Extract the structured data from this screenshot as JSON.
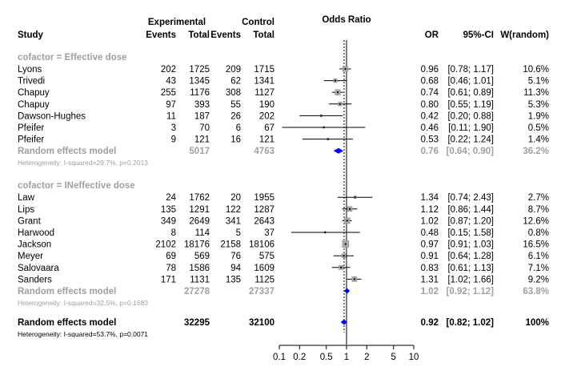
{
  "chart_data": {
    "type": "forest",
    "title": "Odds Ratio",
    "x_scale": "log",
    "x_range": [
      0.1,
      10
    ],
    "x_ticks": [
      "0.1",
      "0.2",
      "0.5",
      "1",
      "2",
      "5",
      "10"
    ],
    "reference_line": 1,
    "overall_line": 0.92,
    "headers": {
      "experimental": "Experimental",
      "control": "Control",
      "study": "Study",
      "events": "Events",
      "total": "Total",
      "or": "OR",
      "ci": "95%-CI",
      "weight": "W(random)"
    },
    "groups": [
      {
        "label": "cofactor = Effective dose",
        "studies": [
          {
            "name": "Lyons",
            "e_events": "202",
            "e_total": "1725",
            "c_events": "209",
            "c_total": "1715",
            "or": 0.96,
            "lo": 0.78,
            "hi": 1.17,
            "or_text": "0.96",
            "ci_text": "[0.78; 1.17]",
            "weight": "10.6%"
          },
          {
            "name": "Trivedi",
            "e_events": "43",
            "e_total": "1345",
            "c_events": "62",
            "c_total": "1341",
            "or": 0.68,
            "lo": 0.46,
            "hi": 1.01,
            "or_text": "0.68",
            "ci_text": "[0.46; 1.01]",
            "weight": "5.1%"
          },
          {
            "name": "Chapuy",
            "e_events": "255",
            "e_total": "1176",
            "c_events": "308",
            "c_total": "1127",
            "or": 0.74,
            "lo": 0.61,
            "hi": 0.89,
            "or_text": "0.74",
            "ci_text": "[0.61; 0.89]",
            "weight": "11.3%"
          },
          {
            "name": "Chapuy",
            "e_events": "97",
            "e_total": "393",
            "c_events": "55",
            "c_total": "190",
            "or": 0.8,
            "lo": 0.55,
            "hi": 1.19,
            "or_text": "0.80",
            "ci_text": "[0.55; 1.19]",
            "weight": "5.3%"
          },
          {
            "name": "Dawson-Hughes",
            "e_events": "11",
            "e_total": "187",
            "c_events": "26",
            "c_total": "202",
            "or": 0.42,
            "lo": 0.2,
            "hi": 0.88,
            "or_text": "0.42",
            "ci_text": "[0.20; 0.88]",
            "weight": "1.9%"
          },
          {
            "name": "Pfeifer",
            "e_events": "3",
            "e_total": "70",
            "c_events": "6",
            "c_total": "67",
            "or": 0.46,
            "lo": 0.11,
            "hi": 1.9,
            "or_text": "0.46",
            "ci_text": "[0.11; 1.90]",
            "weight": "0.5%"
          },
          {
            "name": "Pfeifer",
            "e_events": "9",
            "e_total": "121",
            "c_events": "16",
            "c_total": "121",
            "or": 0.53,
            "lo": 0.22,
            "hi": 1.24,
            "or_text": "0.53",
            "ci_text": "[0.22; 1.24]",
            "weight": "1.4%"
          }
        ],
        "summary": {
          "name": "Random effects model",
          "e_total": "5017",
          "c_total": "4763",
          "or": 0.76,
          "lo": 0.64,
          "hi": 0.9,
          "or_text": "0.76",
          "ci_text": "[0.64; 0.90]",
          "weight": "36.2%"
        },
        "heterogeneity": "Heterogeneity: I-squared=29.7%, p=0.2013"
      },
      {
        "label": "cofactor = INeffective dose",
        "studies": [
          {
            "name": "Law",
            "e_events": "24",
            "e_total": "1762",
            "c_events": "20",
            "c_total": "1955",
            "or": 1.34,
            "lo": 0.74,
            "hi": 2.43,
            "or_text": "1.34",
            "ci_text": "[0.74; 2.43]",
            "weight": "2.7%"
          },
          {
            "name": "Lips",
            "e_events": "135",
            "e_total": "1291",
            "c_events": "122",
            "c_total": "1287",
            "or": 1.12,
            "lo": 0.86,
            "hi": 1.44,
            "or_text": "1.12",
            "ci_text": "[0.86; 1.44]",
            "weight": "8.7%"
          },
          {
            "name": "Grant",
            "e_events": "349",
            "e_total": "2649",
            "c_events": "341",
            "c_total": "2643",
            "or": 1.02,
            "lo": 0.87,
            "hi": 1.2,
            "or_text": "1.02",
            "ci_text": "[0.87; 1.20]",
            "weight": "12.6%"
          },
          {
            "name": "Harwood",
            "e_events": "8",
            "e_total": "114",
            "c_events": "5",
            "c_total": "37",
            "or": 0.48,
            "lo": 0.15,
            "hi": 1.58,
            "or_text": "0.48",
            "ci_text": "[0.15; 1.58]",
            "weight": "0.8%"
          },
          {
            "name": "Jackson",
            "e_events": "2102",
            "e_total": "18176",
            "c_events": "2158",
            "c_total": "18106",
            "or": 0.97,
            "lo": 0.91,
            "hi": 1.03,
            "or_text": "0.97",
            "ci_text": "[0.91; 1.03]",
            "weight": "16.5%"
          },
          {
            "name": "Meyer",
            "e_events": "69",
            "e_total": "569",
            "c_events": "76",
            "c_total": "575",
            "or": 0.91,
            "lo": 0.64,
            "hi": 1.28,
            "or_text": "0.91",
            "ci_text": "[0.64; 1.28]",
            "weight": "6.1%"
          },
          {
            "name": "Salovaara",
            "e_events": "78",
            "e_total": "1586",
            "c_events": "94",
            "c_total": "1609",
            "or": 0.83,
            "lo": 0.61,
            "hi": 1.13,
            "or_text": "0.83",
            "ci_text": "[0.61; 1.13]",
            "weight": "7.1%"
          },
          {
            "name": "Sanders",
            "e_events": "171",
            "e_total": "1131",
            "c_events": "135",
            "c_total": "1125",
            "or": 1.31,
            "lo": 1.02,
            "hi": 1.66,
            "or_text": "1.31",
            "ci_text": "[1.02; 1.66]",
            "weight": "9.2%"
          }
        ],
        "summary": {
          "name": "Random effects model",
          "e_total": "27278",
          "c_total": "27337",
          "or": 1.02,
          "lo": 0.92,
          "hi": 1.12,
          "or_text": "1.02",
          "ci_text": "[0.92; 1.12]",
          "weight": "63.8%"
        },
        "heterogeneity": "Heterogeneity: I-squared=32.5%, p=0.1683"
      }
    ],
    "overall": {
      "name": "Random effects model",
      "e_total": "32295",
      "c_total": "32100",
      "or": 0.92,
      "lo": 0.82,
      "hi": 1.02,
      "or_text": "0.92",
      "ci_text": "[0.82; 1.02]",
      "weight": "100%"
    },
    "overall_heterogeneity": "Heterogeneity: I-squared=53.7%, p=0.0071",
    "colors": {
      "study_box": "#a9a9a9",
      "summary_diamond": "#0000ff",
      "subgroup_text": "#a0a0a0"
    }
  }
}
